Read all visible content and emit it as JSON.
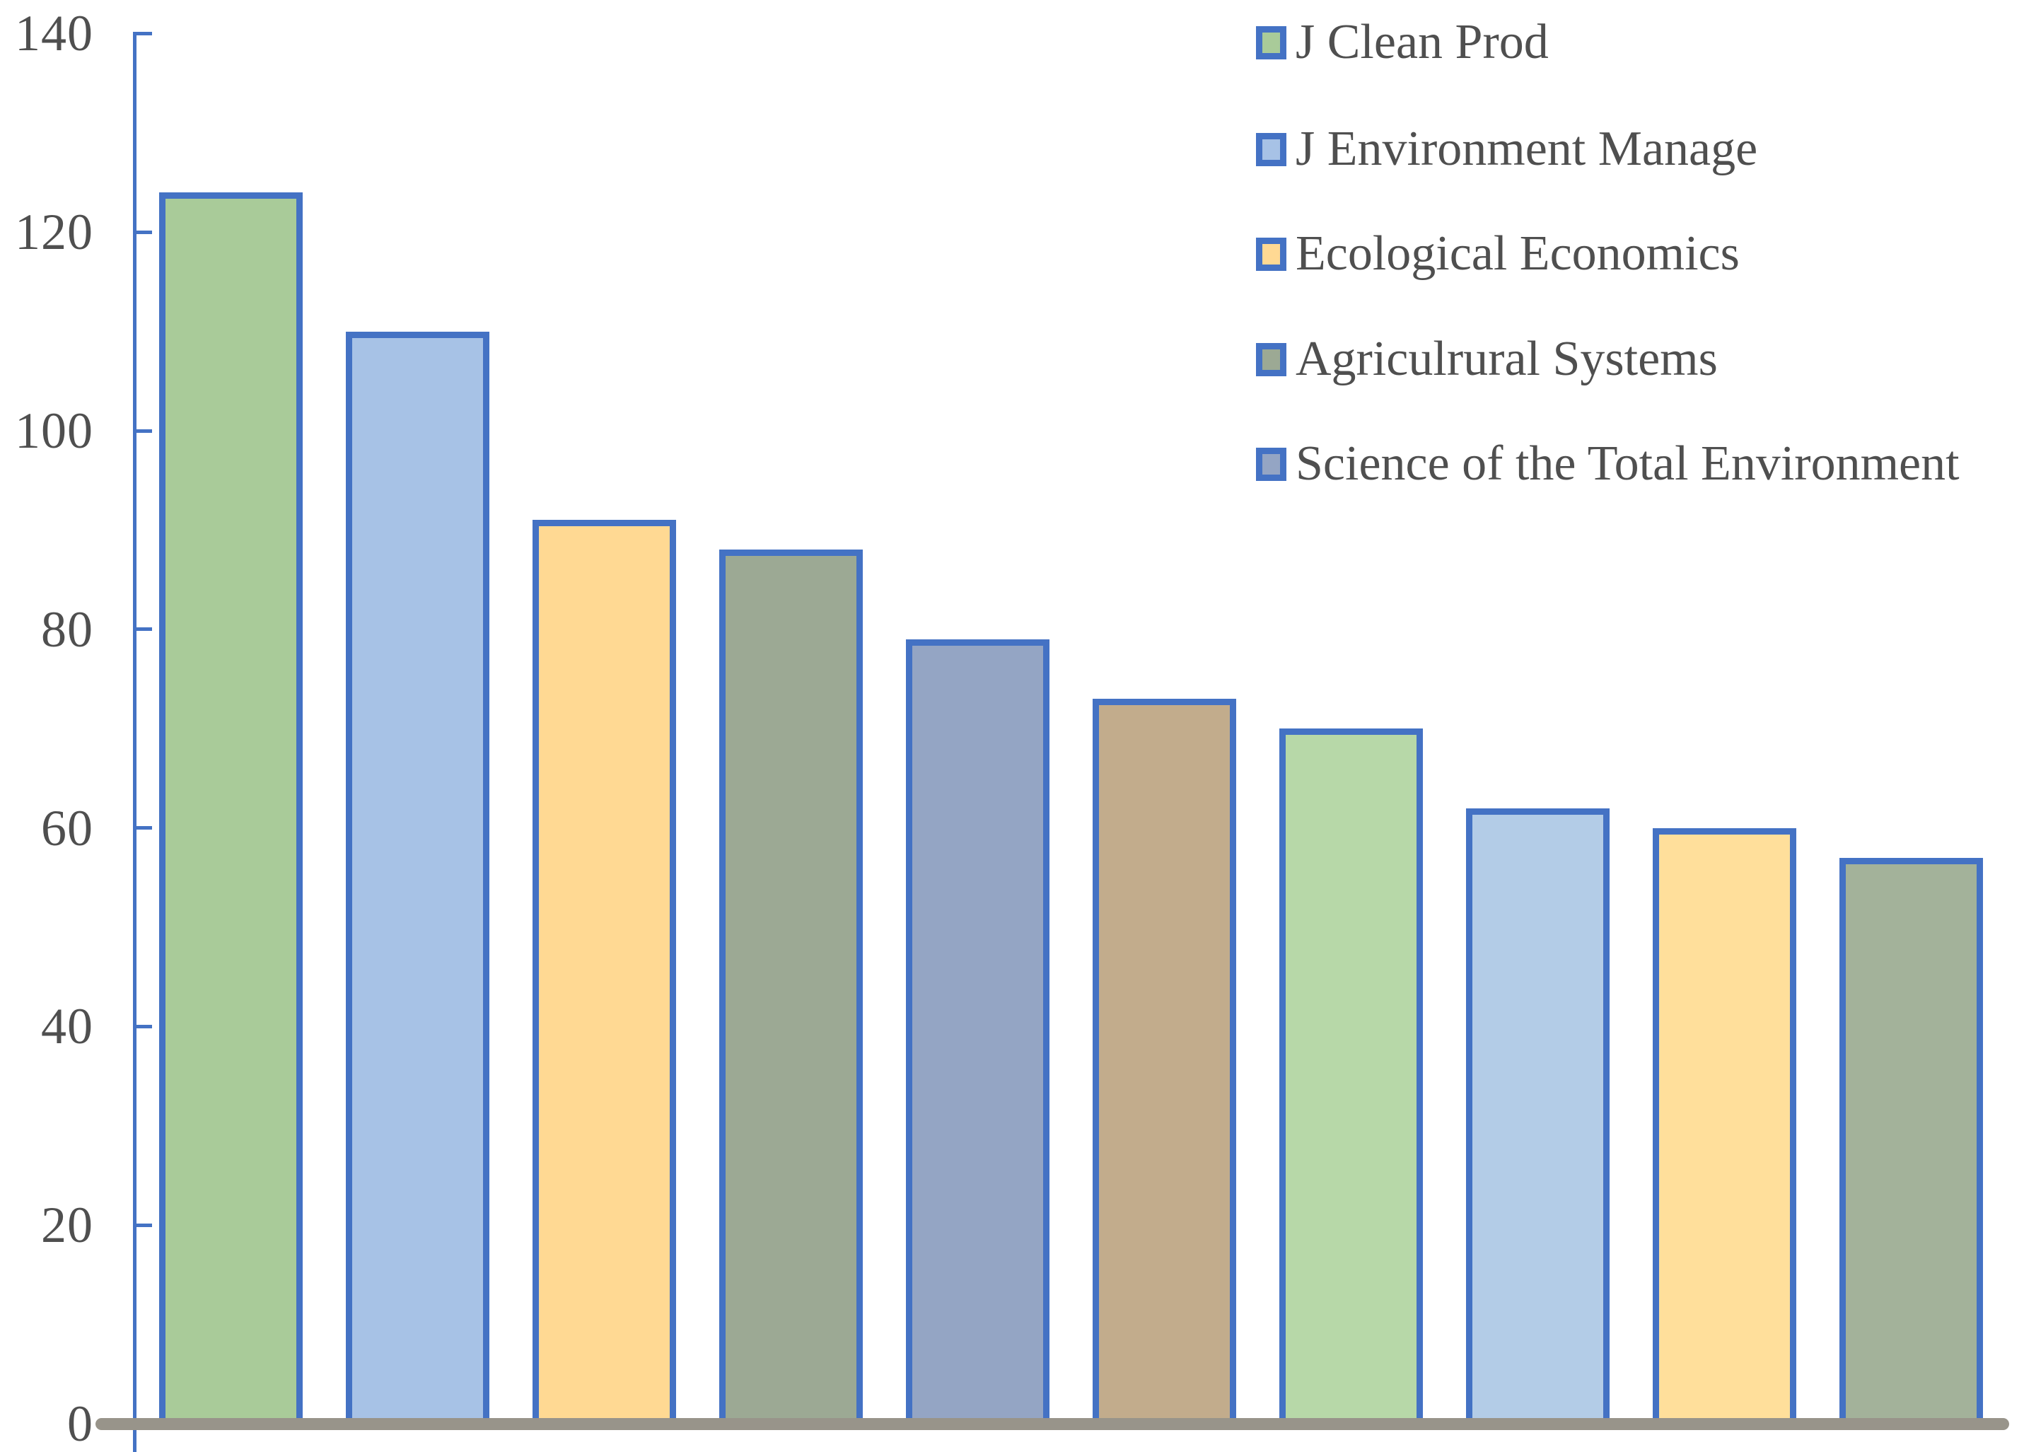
{
  "chart_data": {
    "type": "bar",
    "title": "",
    "xlabel": "",
    "ylabel": "",
    "values": [
      124,
      110,
      91,
      88,
      79,
      73,
      70,
      62,
      60,
      57
    ],
    "bar_fill_colors": [
      "#A9CB99",
      "#A7C2E6",
      "#FFD993",
      "#9CA994",
      "#94A5C4",
      "#C2AC8C",
      "#B7D8A8",
      "#B3CCE7",
      "#FFDF9B",
      "#A3B29A"
    ],
    "bar_border_color": "#4472C4",
    "ylim": [
      0,
      140
    ],
    "yticks": [
      0,
      20,
      40,
      60,
      80,
      100,
      120,
      140
    ],
    "ytick_labels": [
      "0",
      "20",
      "40",
      "60",
      "80",
      "100",
      "120",
      "140"
    ],
    "grid": false,
    "legend_position": "top-right",
    "legend": [
      {
        "label": "J Clean Prod",
        "color": "#A9CB99"
      },
      {
        "label": "J Environment Manage",
        "color": "#A7C2E6"
      },
      {
        "label": "Ecological Economics",
        "color": "#FFD993"
      },
      {
        "label": "Agriculrural Systems",
        "color": "#9CA994"
      },
      {
        "label": "Science of the Total Environment",
        "color": "#94A5C4"
      }
    ],
    "axis_color": "#4472C4",
    "baseline_color": "#98948A",
    "text_color": "#4F4F4F"
  }
}
